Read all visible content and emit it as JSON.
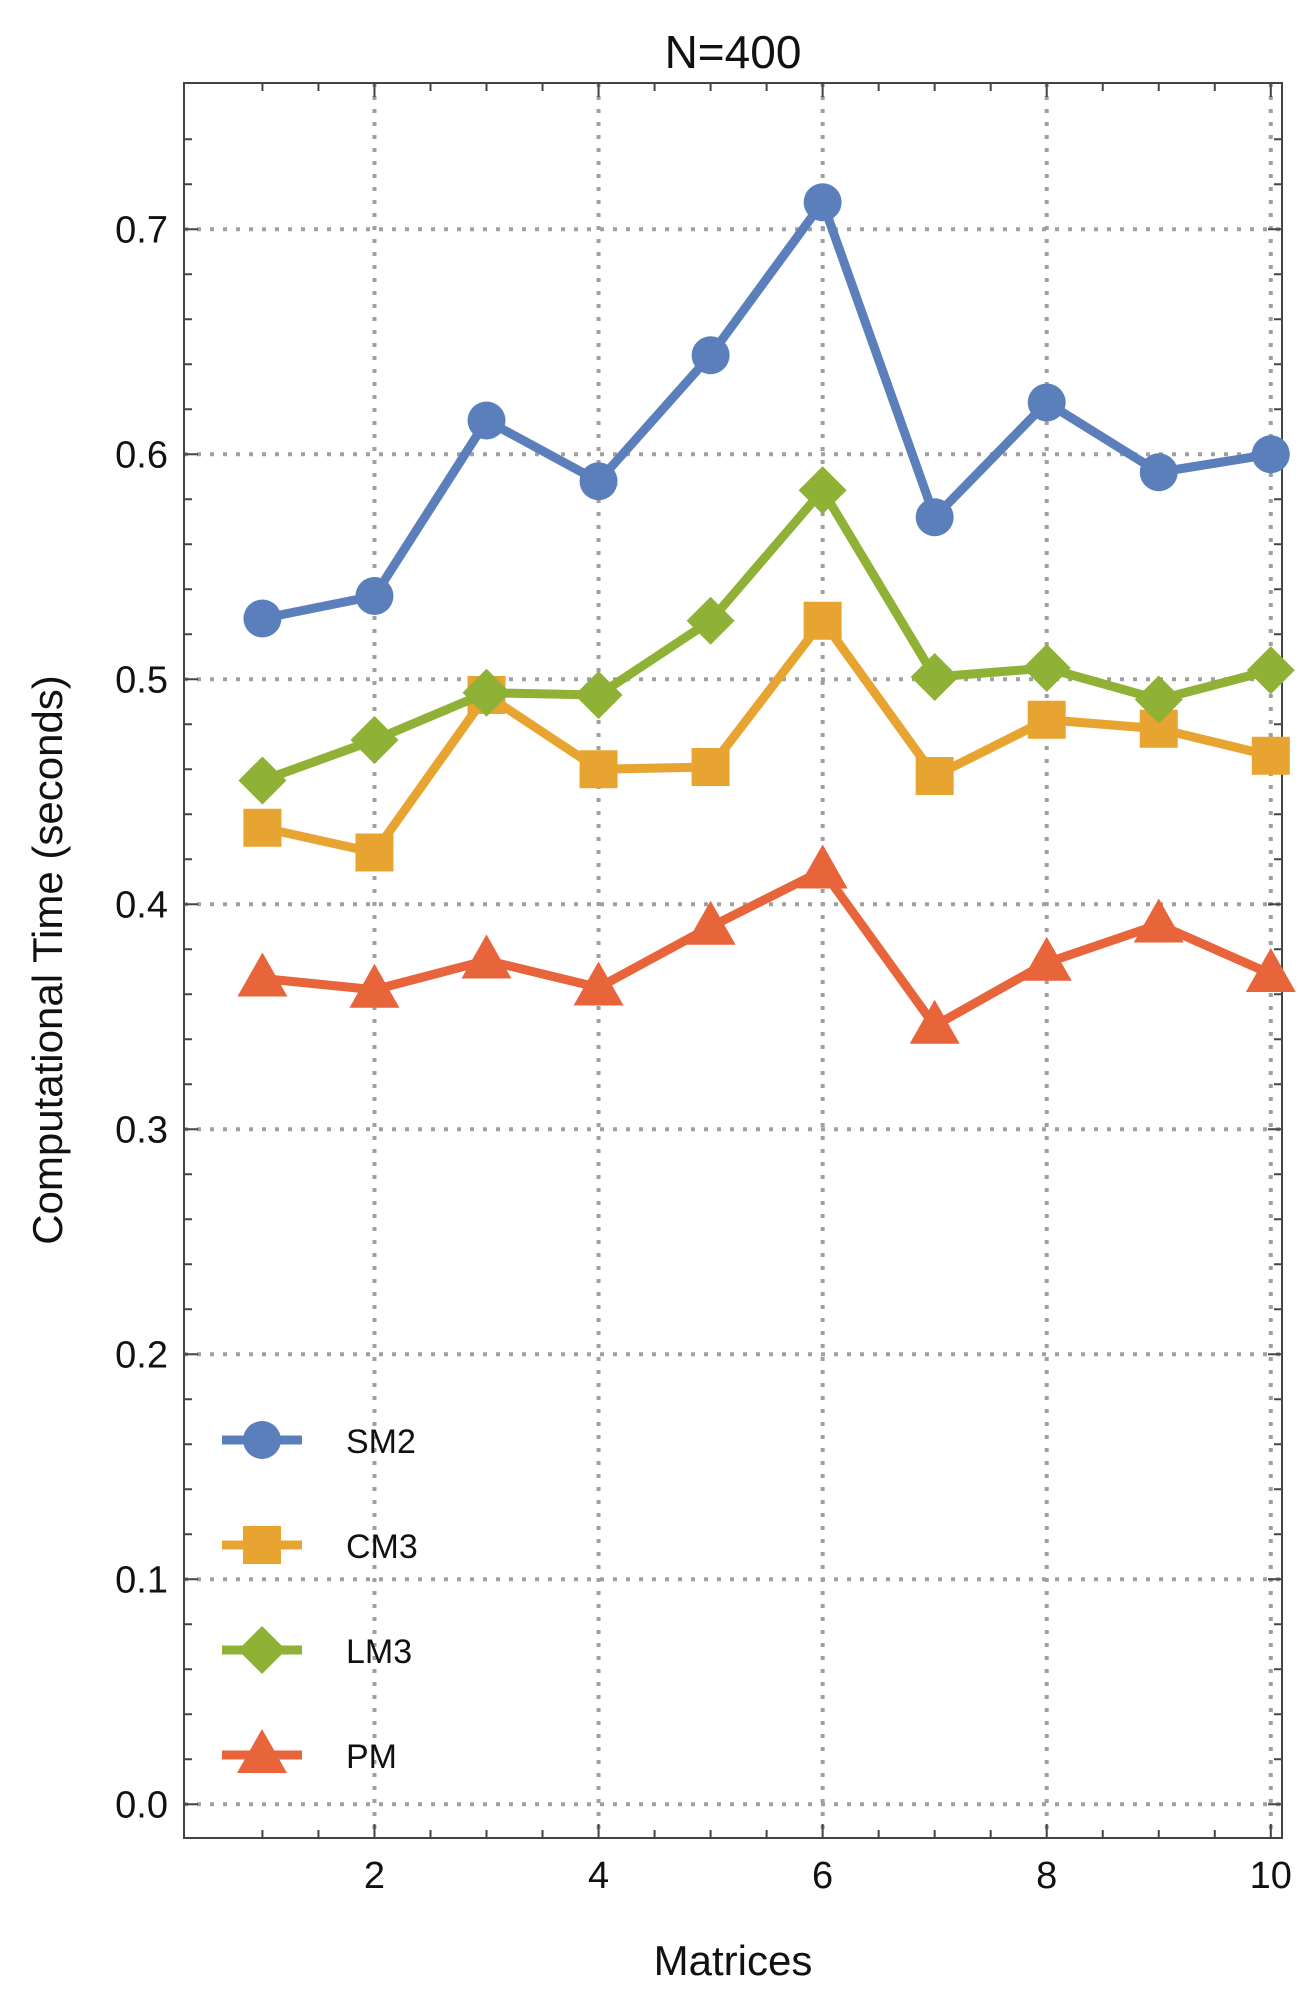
{
  "chart_data": {
    "type": "line",
    "title": "N=400",
    "xlabel": "Matrices",
    "ylabel": "Computational Time (seconds)",
    "x": [
      1,
      2,
      3,
      4,
      5,
      6,
      7,
      8,
      9,
      10
    ],
    "xlim": [
      0.3,
      10.1
    ],
    "ylim": [
      -0.015,
      0.765
    ],
    "x_ticks": [
      2,
      4,
      6,
      8,
      10
    ],
    "x_tick_labels": [
      "2",
      "4",
      "6",
      "8",
      "10"
    ],
    "y_ticks": [
      0.0,
      0.1,
      0.2,
      0.3,
      0.4,
      0.5,
      0.6,
      0.7
    ],
    "y_tick_labels": [
      "0.0",
      "0.1",
      "0.2",
      "0.3",
      "0.4",
      "0.5",
      "0.6",
      "0.7"
    ],
    "grid": true,
    "legend_position": "bottom-left",
    "series": [
      {
        "name": "SM2",
        "marker": "circle",
        "color": "#5b7fba",
        "values": [
          0.527,
          0.537,
          0.615,
          0.588,
          0.644,
          0.712,
          0.572,
          0.623,
          0.592,
          0.6
        ]
      },
      {
        "name": "CM3",
        "marker": "square",
        "color": "#e8a430",
        "values": [
          0.434,
          0.423,
          0.493,
          0.46,
          0.461,
          0.526,
          0.457,
          0.482,
          0.478,
          0.466
        ]
      },
      {
        "name": "LM3",
        "marker": "diamond",
        "color": "#8fb135",
        "values": [
          0.455,
          0.473,
          0.494,
          0.493,
          0.526,
          0.584,
          0.501,
          0.505,
          0.491,
          0.504
        ]
      },
      {
        "name": "PM",
        "marker": "triangle",
        "color": "#e8643a",
        "values": [
          0.367,
          0.362,
          0.375,
          0.363,
          0.39,
          0.415,
          0.346,
          0.374,
          0.391,
          0.369
        ]
      }
    ]
  }
}
